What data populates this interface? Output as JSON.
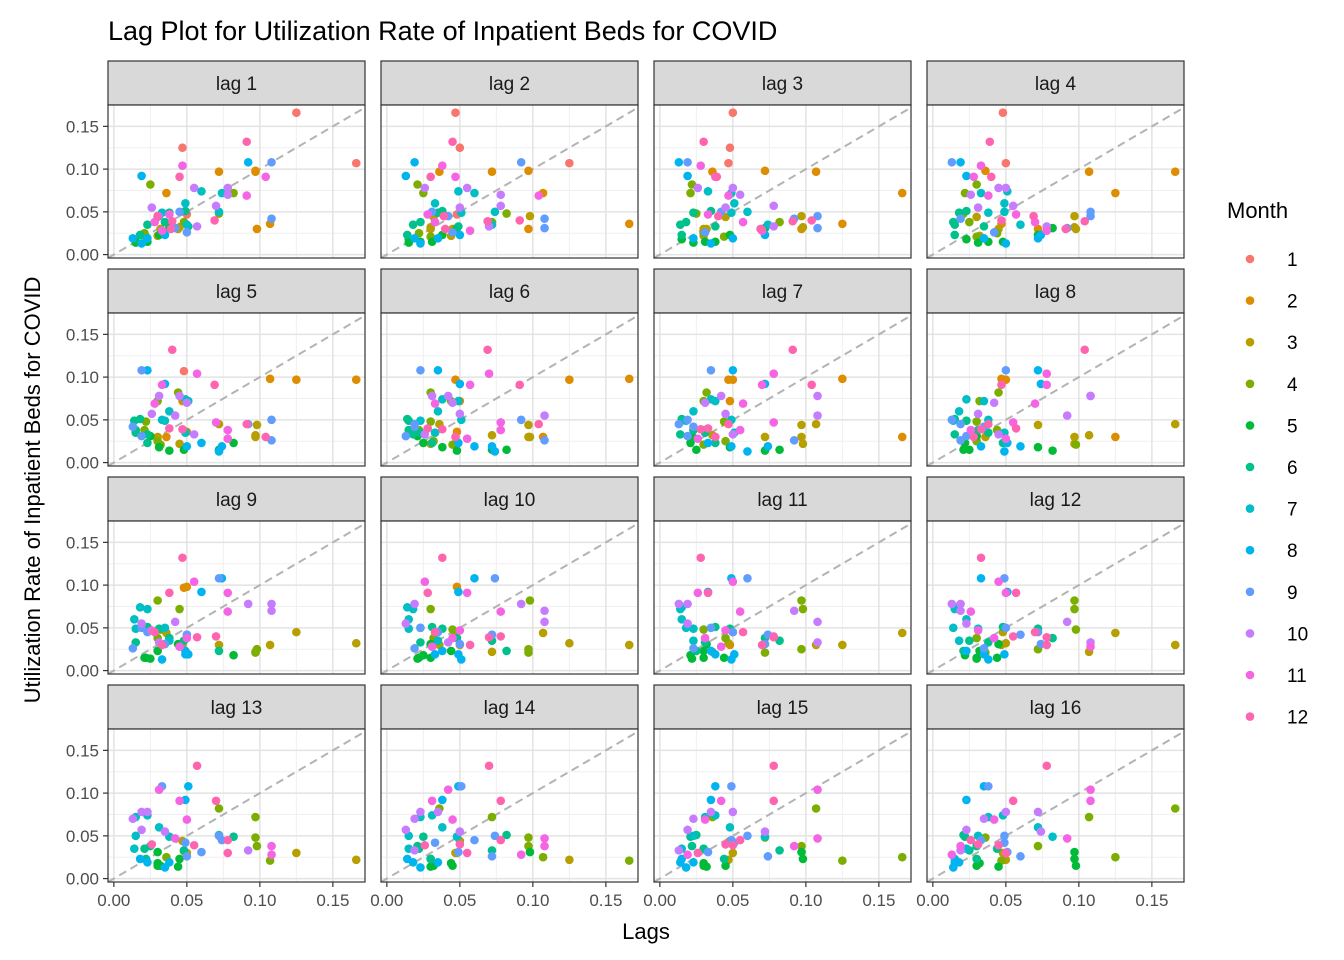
{
  "chart_data": {
    "type": "scatter",
    "title": "Lag Plot for Utilization Rate of Inpatient Beds for COVID",
    "xlabel": "Lags",
    "ylabel": "Utilization Rate of Inpatient Beds for COVID",
    "xlim": [
      -0.004,
      0.172
    ],
    "ylim": [
      -0.004,
      0.175
    ],
    "x_ticks": [
      "0.00",
      "0.05",
      "0.10",
      "0.15"
    ],
    "y_ticks": [
      "0.00",
      "0.05",
      "0.10",
      "0.15"
    ],
    "grid": true,
    "reference_line": "y = x (dashed grey)",
    "legend": {
      "title": "Month",
      "position": "right",
      "entries": [
        {
          "label": "1",
          "color": "#F8766D"
        },
        {
          "label": "2",
          "color": "#DE8C00"
        },
        {
          "label": "3",
          "color": "#B79F00"
        },
        {
          "label": "4",
          "color": "#7CAE00"
        },
        {
          "label": "5",
          "color": "#00BA38"
        },
        {
          "label": "6",
          "color": "#00C08B"
        },
        {
          "label": "7",
          "color": "#00BFC4"
        },
        {
          "label": "8",
          "color": "#00B4F0"
        },
        {
          "label": "9",
          "color": "#619CFF"
        },
        {
          "label": "10",
          "color": "#C77CFF"
        },
        {
          "label": "11",
          "color": "#F564E3"
        },
        {
          "label": "12",
          "color": "#FF64B0"
        }
      ]
    },
    "panels": [
      "lag 1",
      "lag 2",
      "lag 3",
      "lag 4",
      "lag 5",
      "lag 6",
      "lag 7",
      "lag 8",
      "lag 9",
      "lag 10",
      "lag 11",
      "lag 12",
      "lag 13",
      "lag 14",
      "lag 15",
      "lag 16"
    ],
    "series": [
      {
        "name": "Month",
        "months": [
          1,
          1,
          1,
          1,
          1,
          1,
          2,
          2,
          2,
          2,
          2,
          2,
          3,
          3,
          3,
          3,
          3,
          3,
          4,
          4,
          4,
          4,
          4,
          4,
          5,
          5,
          5,
          5,
          5,
          5,
          6,
          6,
          6,
          6,
          6,
          6,
          7,
          7,
          7,
          7,
          7,
          7,
          8,
          8,
          8,
          8,
          8,
          8,
          9,
          9,
          9,
          9,
          9,
          9,
          10,
          10,
          10,
          10,
          10,
          10,
          11,
          11,
          11,
          11,
          11,
          11,
          12,
          12,
          12,
          12,
          12,
          12
        ],
        "values": [
          0.048,
          0.05,
          0.047,
          0.125,
          0.166,
          0.107,
          0.036,
          0.072,
          0.097,
          0.097,
          0.098,
          0.03,
          0.045,
          0.032,
          0.03,
          0.044,
          0.03,
          0.022,
          0.021,
          0.025,
          0.082,
          0.072,
          0.048,
          0.038,
          0.031,
          0.023,
          0.015,
          0.015,
          0.014,
          0.018,
          0.023,
          0.035,
          0.038,
          0.049,
          0.051,
          0.033,
          0.049,
          0.06,
          0.074,
          0.072,
          0.05,
          0.035,
          0.023,
          0.019,
          0.013,
          0.019,
          0.092,
          0.108,
          0.108,
          0.042,
          0.031,
          0.045,
          0.05,
          0.026,
          0.055,
          0.078,
          0.078,
          0.07,
          0.057,
          0.033,
          0.028,
          0.038,
          0.047,
          0.104,
          0.091,
          0.069,
          0.04,
          0.039,
          0.03,
          0.045,
          0.091,
          0.132
        ]
      }
    ]
  }
}
